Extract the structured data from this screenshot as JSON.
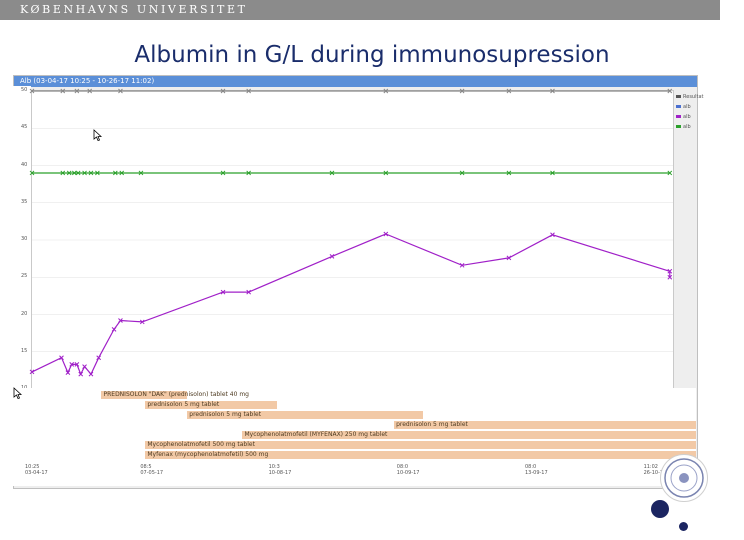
{
  "header": {
    "university": "KØBENHAVNS UNIVERSITET"
  },
  "slide": {
    "title": "Albumin in G/L during immunosupression"
  },
  "window": {
    "title": "Alb (03-04-17 10:25 - 10-26-17 11:02)",
    "titlebar_color": "#5b8fd8"
  },
  "chart_data": {
    "type": "line",
    "title": "",
    "xlabel": "",
    "ylabel": "",
    "x_kind": "time",
    "ylim": [
      10,
      50
    ],
    "yticks": [
      "50",
      "45",
      "40",
      "35",
      "30",
      "25",
      "20",
      "15",
      "10"
    ],
    "x_tick_labels": [
      [
        "10:25",
        "03-04-17"
      ],
      [
        "08:5",
        "07-05-17"
      ],
      [
        "10:3",
        "10-08-17"
      ],
      [
        "08:0",
        "10-09-17"
      ],
      [
        "08:0",
        "13-09-17"
      ],
      [
        "11:02",
        "26-10-17"
      ]
    ],
    "series": [
      {
        "color": "#a020c8",
        "points": [
          [
            0.0,
            12.3
          ],
          [
            0.046,
            14.2
          ],
          [
            0.056,
            12.2
          ],
          [
            0.062,
            13.3
          ],
          [
            0.07,
            13.3
          ],
          [
            0.076,
            12.0
          ],
          [
            0.082,
            13.0
          ],
          [
            0.092,
            12.0
          ],
          [
            0.104,
            14.2
          ],
          [
            0.128,
            18.0
          ],
          [
            0.138,
            19.2
          ],
          [
            0.172,
            19.0
          ],
          [
            0.298,
            23.0
          ],
          [
            0.338,
            23.0
          ],
          [
            0.468,
            27.8
          ],
          [
            0.552,
            30.8
          ],
          [
            0.671,
            26.6
          ],
          [
            0.744,
            27.6
          ],
          [
            0.812,
            30.7
          ],
          [
            0.995,
            25.8
          ],
          [
            0.995,
            25.0
          ]
        ]
      },
      {
        "color": "#2aa02a",
        "constant": 39.0,
        "points": [
          [
            0.0,
            39.0
          ],
          [
            0.048,
            39.0
          ],
          [
            0.058,
            39.0
          ],
          [
            0.066,
            39.0
          ],
          [
            0.072,
            39.0
          ],
          [
            0.082,
            39.0
          ],
          [
            0.092,
            39.0
          ],
          [
            0.102,
            39.0
          ],
          [
            0.13,
            39.0
          ],
          [
            0.14,
            39.0
          ],
          [
            0.17,
            39.0
          ],
          [
            0.298,
            39.0
          ],
          [
            0.338,
            39.0
          ],
          [
            0.468,
            39.0
          ],
          [
            0.552,
            39.0
          ],
          [
            0.671,
            39.0
          ],
          [
            0.744,
            39.0
          ],
          [
            0.812,
            39.0
          ],
          [
            0.995,
            39.0
          ]
        ]
      },
      {
        "color": "#888888",
        "constant": 50.0,
        "points": [
          [
            0.0,
            50.0
          ],
          [
            0.048,
            50.0
          ],
          [
            0.07,
            50.0
          ],
          [
            0.09,
            50.0
          ],
          [
            0.138,
            50.0
          ],
          [
            0.298,
            50.0
          ],
          [
            0.338,
            50.0
          ],
          [
            0.552,
            50.0
          ],
          [
            0.671,
            50.0
          ],
          [
            0.744,
            50.0
          ],
          [
            0.812,
            50.0
          ],
          [
            0.995,
            50.0
          ]
        ]
      }
    ]
  },
  "legend": {
    "items": [
      {
        "label": "Resultat",
        "color": "#555555"
      },
      {
        "label": "alb",
        "color": "#4a6fd0"
      },
      {
        "label": "alb",
        "color": "#a020c8"
      },
      {
        "label": "alb",
        "color": "#2aa02a"
      }
    ]
  },
  "medications": [
    {
      "label": "PREDNISOLON \"DAK\" (prednisolon) tablet 40 mg",
      "start": 0.106,
      "end": 0.235
    },
    {
      "label": "prednisolon 5 mg tablet",
      "start": 0.172,
      "end": 0.37
    },
    {
      "label": "prednisolon 5 mg tablet",
      "start": 0.235,
      "end": 0.59
    },
    {
      "label": "prednisolon 5 mg tablet",
      "start": 0.546,
      "end": 1.0
    },
    {
      "label": "Mycophenolatmofetil (MYFENAX) 250 mg tablet",
      "start": 0.318,
      "end": 1.0
    },
    {
      "label": "Mycophenolatmofetil 500 mg tablet",
      "start": 0.172,
      "end": 1.0
    },
    {
      "label": "Myfenax (mycophenolatmofetil) 500 mg",
      "start": 0.172,
      "end": 1.0
    }
  ],
  "colors": {
    "header_bar": "#8b8b8b",
    "title_text": "#1a2d6b",
    "gantt_bar": "#f2c9a6",
    "accent_dot": "#1b2561"
  }
}
